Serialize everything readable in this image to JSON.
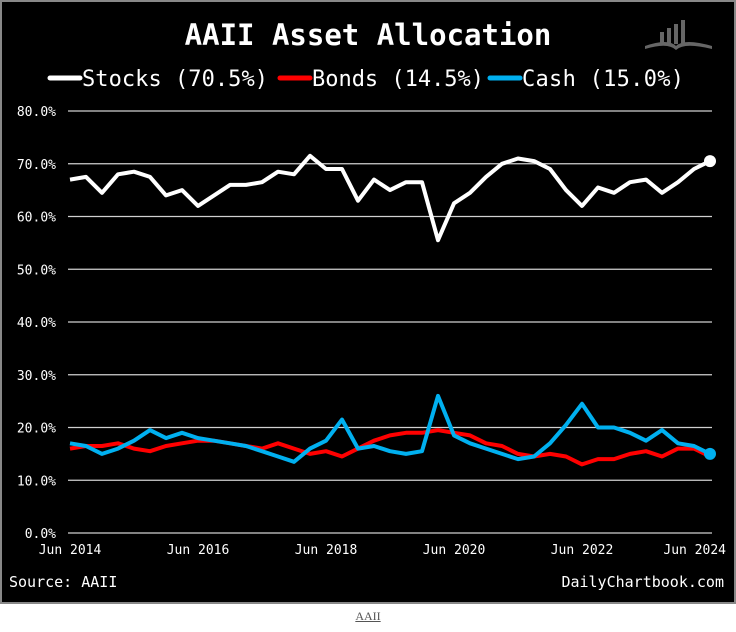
{
  "chart_data": {
    "type": "line",
    "title": "AAII Asset Allocation",
    "x_start": 2014.5,
    "x_step": 0.25,
    "xlim": [
      2014.5,
      2024.5
    ],
    "x_ticks": [
      2014.5,
      2016.5,
      2018.5,
      2020.5,
      2022.5,
      2024.5
    ],
    "x_tick_labels": [
      "Jun 2014",
      "Jun 2016",
      "Jun 2018",
      "Jun 2020",
      "Jun 2022",
      "Jun 2024"
    ],
    "ylim": [
      0,
      80
    ],
    "y_ticks": [
      0,
      10,
      20,
      30,
      40,
      50,
      60,
      70,
      80
    ],
    "y_tick_labels": [
      "0.0%",
      "10.0%",
      "20.0%",
      "30.0%",
      "40.0%",
      "50.0%",
      "60.0%",
      "70.0%",
      "80.0%"
    ],
    "grid": true,
    "legend_placement": "top-center",
    "series": [
      {
        "name": "Stocks",
        "legend": "Stocks (70.5%)",
        "color": "#ffffff",
        "values": [
          67,
          67.5,
          64.5,
          68,
          68.5,
          67.5,
          64,
          65,
          62,
          64,
          66,
          66,
          66.5,
          68.5,
          68,
          71.5,
          69,
          69,
          63,
          67,
          65,
          66.5,
          66.5,
          55.5,
          62.5,
          64.5,
          67.5,
          70,
          71,
          70.5,
          69,
          65,
          62,
          65.5,
          64.5,
          66.5,
          67,
          64.5,
          66.5,
          69,
          70.5
        ]
      },
      {
        "name": "Bonds",
        "legend": "Bonds (14.5%)",
        "color": "#ff0000",
        "values": [
          16,
          16.5,
          16.5,
          17,
          16,
          15.5,
          16.5,
          17,
          17.5,
          17.5,
          17,
          16.5,
          16,
          17,
          16,
          15,
          15.5,
          14.5,
          16,
          17.5,
          18.5,
          19,
          19,
          19.5,
          19,
          18.5,
          17,
          16.5,
          15,
          14.5,
          15,
          14.5,
          13,
          14,
          14,
          15,
          15.5,
          14.5,
          16,
          16,
          14.5
        ]
      },
      {
        "name": "Cash",
        "legend": "Cash (15.0%)",
        "color": "#00b0f0",
        "values": [
          17,
          16.5,
          15,
          16,
          17.5,
          19.5,
          18,
          19,
          18,
          17.5,
          17,
          16.5,
          15.5,
          14.5,
          13.5,
          16,
          17.5,
          21.5,
          16,
          16.5,
          15.5,
          15,
          15.5,
          26,
          18.5,
          17,
          16,
          15,
          14,
          14.5,
          17,
          20.5,
          24.5,
          20,
          20,
          19,
          17.5,
          19.5,
          17,
          16.5,
          15
        ]
      }
    ],
    "source": "Source: AAII",
    "brand": "DailyChartbook.com"
  },
  "footer_link": "AAII"
}
